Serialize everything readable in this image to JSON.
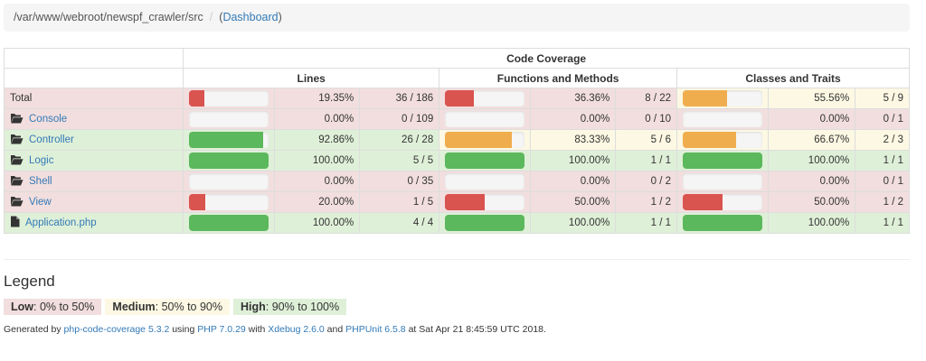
{
  "breadcrumb": {
    "path": "/var/www/webroot/newspf_crawler/src",
    "separator": "/",
    "open_paren": "(",
    "dashboard_link": "Dashboard",
    "close_paren": ")"
  },
  "table": {
    "title": "Code Coverage",
    "group_headers": [
      "Lines",
      "Functions and Methods",
      "Classes and Traits"
    ],
    "rows": [
      {
        "name": "Total",
        "icon": "none",
        "link": false,
        "row_level": "danger",
        "lines": {
          "pct": "19.35%",
          "count": "36 / 186",
          "fill": 0.1935,
          "level": "danger"
        },
        "methods": {
          "pct": "36.36%",
          "count": "8 / 22",
          "fill": 0.3636,
          "level": "danger"
        },
        "classes": {
          "pct": "55.56%",
          "count": "5 / 9",
          "fill": 0.5556,
          "level": "warning"
        }
      },
      {
        "name": "Console",
        "icon": "folder-open-icon",
        "link": true,
        "row_level": "danger",
        "lines": {
          "pct": "0.00%",
          "count": "0 / 109",
          "fill": 0,
          "level": "danger"
        },
        "methods": {
          "pct": "0.00%",
          "count": "0 / 10",
          "fill": 0,
          "level": "danger"
        },
        "classes": {
          "pct": "0.00%",
          "count": "0 / 1",
          "fill": 0,
          "level": "danger"
        }
      },
      {
        "name": "Controller",
        "icon": "folder-open-icon",
        "link": true,
        "row_level": "success",
        "lines": {
          "pct": "92.86%",
          "count": "26 / 28",
          "fill": 0.9286,
          "level": "success"
        },
        "methods": {
          "pct": "83.33%",
          "count": "5 / 6",
          "fill": 0.8333,
          "level": "warning"
        },
        "classes": {
          "pct": "66.67%",
          "count": "2 / 3",
          "fill": 0.6667,
          "level": "warning"
        }
      },
      {
        "name": "Logic",
        "icon": "folder-open-icon",
        "link": true,
        "row_level": "success",
        "lines": {
          "pct": "100.00%",
          "count": "5 / 5",
          "fill": 1,
          "level": "success"
        },
        "methods": {
          "pct": "100.00%",
          "count": "1 / 1",
          "fill": 1,
          "level": "success"
        },
        "classes": {
          "pct": "100.00%",
          "count": "1 / 1",
          "fill": 1,
          "level": "success"
        }
      },
      {
        "name": "Shell",
        "icon": "folder-open-icon",
        "link": true,
        "row_level": "danger",
        "lines": {
          "pct": "0.00%",
          "count": "0 / 35",
          "fill": 0,
          "level": "danger"
        },
        "methods": {
          "pct": "0.00%",
          "count": "0 / 2",
          "fill": 0,
          "level": "danger"
        },
        "classes": {
          "pct": "0.00%",
          "count": "0 / 1",
          "fill": 0,
          "level": "danger"
        }
      },
      {
        "name": "View",
        "icon": "folder-open-icon",
        "link": true,
        "row_level": "danger",
        "lines": {
          "pct": "20.00%",
          "count": "1 / 5",
          "fill": 0.2,
          "level": "danger"
        },
        "methods": {
          "pct": "50.00%",
          "count": "1 / 2",
          "fill": 0.5,
          "level": "danger"
        },
        "classes": {
          "pct": "50.00%",
          "count": "1 / 2",
          "fill": 0.5,
          "level": "danger"
        }
      },
      {
        "name": "Application.php",
        "icon": "file-icon",
        "link": true,
        "row_level": "success",
        "lines": {
          "pct": "100.00%",
          "count": "4 / 4",
          "fill": 1,
          "level": "success"
        },
        "methods": {
          "pct": "100.00%",
          "count": "1 / 1",
          "fill": 1,
          "level": "success"
        },
        "classes": {
          "pct": "100.00%",
          "count": "1 / 1",
          "fill": 1,
          "level": "success"
        }
      }
    ]
  },
  "legend": {
    "title": "Legend",
    "low_label": "Low",
    "low_range": ": 0% to 50%",
    "medium_label": "Medium",
    "medium_range": ": 50% to 90%",
    "high_label": "High",
    "high_range": ": 90% to 100%"
  },
  "footer": {
    "prefix": "Generated by ",
    "tool_link": "php-code-coverage 5.3.2",
    "using": " using ",
    "php_link": "PHP 7.0.29",
    "with": " with ",
    "xdebug_link": "Xdebug 2.6.0",
    "and": " and ",
    "phpunit_link": "PHPUnit 6.5.8",
    "suffix": " at Sat Apr 21 8:45:59 UTC 2018."
  },
  "colors": {
    "danger_bar": "#d9534f",
    "warning_bar": "#f0ad4e",
    "success_bar": "#5cb85c",
    "danger_bg": "#f2dede",
    "warning_bg": "#fcf8e3",
    "success_bg": "#dff0d8",
    "link": "#337ab7"
  }
}
